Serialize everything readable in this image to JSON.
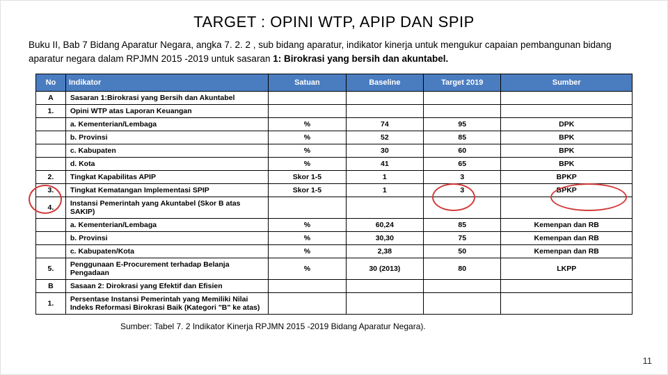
{
  "title": "TARGET : OPINI WTP, APIP DAN SPIP",
  "subtitle_plain": "Buku II, Bab 7 Bidang Aparatur Negara, angka 7. 2. 2 , sub bidang aparatur, indikator kinerja untuk mengukur capaian pembangunan bidang aparatur negara dalam RPJMN 2015 -2019 untuk sasaran ",
  "subtitle_bold": "1: Birokrasi yang bersih dan akuntabel.",
  "headers": {
    "no": "No",
    "indikator": "Indikator",
    "satuan": "Satuan",
    "baseline": "Baseline",
    "target": "Target 2019",
    "sumber": "Sumber"
  },
  "rows": [
    {
      "no": "A",
      "ind": "Sasaran 1:Birokrasi yang Bersih dan Akuntabel",
      "sat": "",
      "base": "",
      "tgt": "",
      "src": ""
    },
    {
      "no": "1.",
      "ind": "Opini WTP atas Laporan Keuangan",
      "sat": "",
      "base": "",
      "tgt": "",
      "src": ""
    },
    {
      "no": "",
      "ind": "a. Kementerian/Lembaga",
      "sat": "%",
      "base": "74",
      "tgt": "95",
      "src": "DPK"
    },
    {
      "no": "",
      "ind": "b. Provinsi",
      "sat": "%",
      "base": "52",
      "tgt": "85",
      "src": "BPK"
    },
    {
      "no": "",
      "ind": "c. Kabupaten",
      "sat": "%",
      "base": "30",
      "tgt": "60",
      "src": "BPK"
    },
    {
      "no": "",
      "ind": "d. Kota",
      "sat": "%",
      "base": "41",
      "tgt": "65",
      "src": "BPK"
    },
    {
      "no": "2.",
      "ind": "Tingkat Kapabilitas APIP",
      "sat": "Skor 1-5",
      "base": "1",
      "tgt": "3",
      "src": "BPKP"
    },
    {
      "no": "3.",
      "ind": "Tingkat Kematangan Implementasi SPIP",
      "sat": "Skor 1-5",
      "base": "1",
      "tgt": "3",
      "src": "BPKP"
    },
    {
      "no": "4.",
      "ind": "Instansi Pemerintah yang Akuntabel (Skor B atas SAKIP)",
      "sat": "",
      "base": "",
      "tgt": "",
      "src": ""
    },
    {
      "no": "",
      "ind": "a. Kementerian/Lembaga",
      "sat": "%",
      "base": "60,24",
      "tgt": "85",
      "src": "Kemenpan dan RB"
    },
    {
      "no": "",
      "ind": "b. Provinsi",
      "sat": "%",
      "base": "30,30",
      "tgt": "75",
      "src": "Kemenpan dan RB"
    },
    {
      "no": "",
      "ind": "c. Kabupaten/Kota",
      "sat": "%",
      "base": "2,38",
      "tgt": "50",
      "src": "Kemenpan dan RB"
    },
    {
      "no": "5.",
      "ind": "Penggunaan E-Procurement terhadap Belanja Pengadaan",
      "sat": "%",
      "base": "30 (2013)",
      "tgt": "80",
      "src": "LKPP"
    },
    {
      "no": "B",
      "ind": "Sasaan 2: Dirokrasi yang Efektif dan Efisien",
      "sat": "",
      "base": "",
      "tgt": "",
      "src": ""
    },
    {
      "no": "1.",
      "ind": "Persentase Instansi Pemerintah yang Memiliki Nilai Indeks Reformasi Birokrasi Baik (Kategori \"B\" ke atas)",
      "sat": "",
      "base": "",
      "tgt": "",
      "src": ""
    }
  ],
  "source_note": "Sumber: Tabel 7. 2 Indikator Kinerja RPJMN 2015 -2019 Bidang Aparatur Negara).",
  "page_number": "11",
  "header_bg": "#4a7cc0",
  "circle_color": "#d23a3a"
}
